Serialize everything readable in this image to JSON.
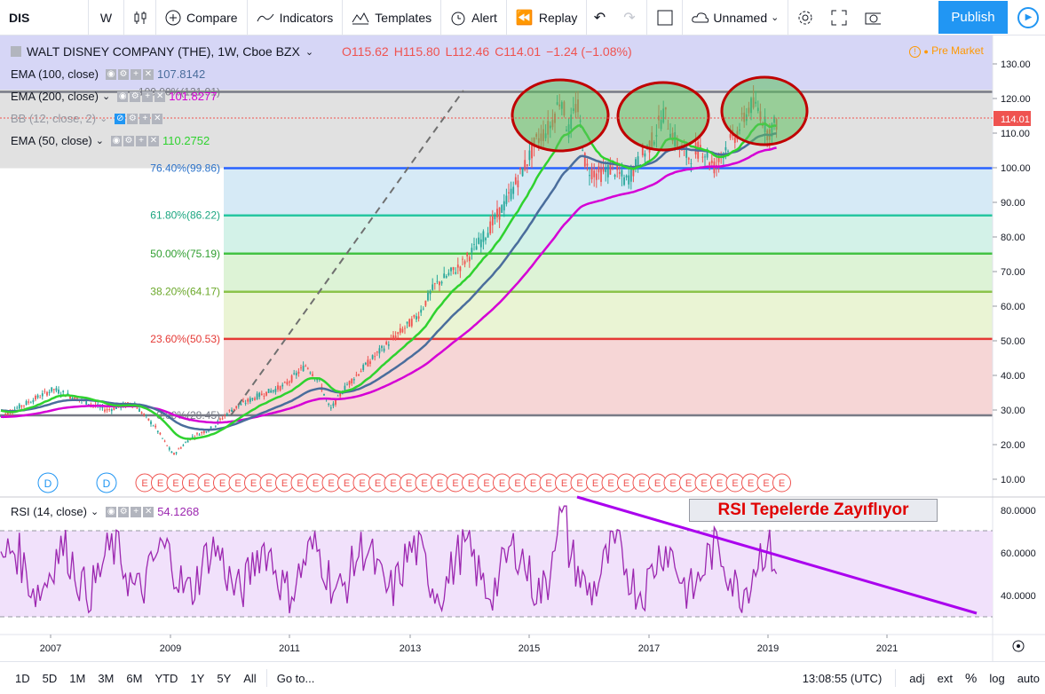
{
  "toolbar": {
    "symbol": "DIS",
    "interval": "W",
    "compare_label": "Compare",
    "indicators_label": "Indicators",
    "templates_label": "Templates",
    "alert_label": "Alert",
    "replay_label": "Replay",
    "layout_name": "Unnamed",
    "publish_label": "Publish"
  },
  "header": {
    "title": "WALT DISNEY COMPANY (THE), 1W, Cboe BZX",
    "open": "O115.62",
    "high": "H115.80",
    "low": "L112.46",
    "close": "C114.01",
    "change": "−1.24 (−1.08%)",
    "premarket": "Pre Market"
  },
  "indicators": [
    {
      "label": "EMA (100, close)",
      "value": "107.8142",
      "color": "#4a6d9c"
    },
    {
      "label": "EMA (200, close)",
      "value": "101.8277",
      "color": "#d500d5"
    },
    {
      "label": "BB (12, close, 2)",
      "value": "",
      "color": "#9598a1"
    },
    {
      "label": "EMA (50, close)",
      "value": "110.2752",
      "color": "#2fd22f"
    }
  ],
  "fib_levels": [
    {
      "label": "100.00%(121.91)",
      "value": 121.91,
      "line_color": "#787b86",
      "fill": "#e1e1e1",
      "text_color": "#787b86"
    },
    {
      "label": "76.40%(99.86)",
      "value": 99.86,
      "line_color": "#2962ff",
      "fill": "#e1e1e1",
      "text_color": "#2b72c9"
    },
    {
      "label": "61.80%(86.22)",
      "value": 86.22,
      "line_color": "#26c6a0",
      "fill": "#d6eaf6",
      "text_color": "#1ba680"
    },
    {
      "label": "50.00%(75.19)",
      "value": 75.19,
      "line_color": "#43c243",
      "fill": "#d3f2e8",
      "text_color": "#2f9e2f"
    },
    {
      "label": "38.20%(64.17)",
      "value": 64.17,
      "line_color": "#8bc34a",
      "fill": "#ddf3d6",
      "text_color": "#6ba82a"
    },
    {
      "label": "23.60%(50.53)",
      "value": 50.53,
      "line_color": "#e53935",
      "fill": "#eaf4d4",
      "text_color": "#e53935"
    },
    {
      "label": "0.00%(28.45)",
      "value": 28.45,
      "line_color": "#787b86",
      "fill": "#f6d6d6",
      "text_color": "#787b86"
    }
  ],
  "price_axis": {
    "ticks": [
      "130.00",
      "120.00",
      "110.00",
      "100.00",
      "90.00",
      "80.00",
      "70.00",
      "60.00",
      "50.00",
      "40.00",
      "30.00",
      "20.00",
      "10.00"
    ],
    "last_price": "114.01"
  },
  "rsi": {
    "label": "RSI (14, close)",
    "value": "54.1268",
    "ticks": [
      "80.0000",
      "60.0000",
      "40.0000"
    ],
    "annotation": "RSI Tepelerde Zayıflıyor"
  },
  "time_axis": [
    "2007",
    "2009",
    "2011",
    "2013",
    "2015",
    "2017",
    "2019",
    "2021"
  ],
  "markers": {
    "dividend": "D",
    "earnings": "E"
  },
  "bottom": {
    "ranges": [
      "1D",
      "5D",
      "1M",
      "3M",
      "6M",
      "YTD",
      "1Y",
      "5Y",
      "All"
    ],
    "goto_label": "Go to...",
    "clock": "13:08:55 (UTC)",
    "adj": "adj",
    "ext": "ext",
    "percent": "%",
    "log": "log",
    "auto": "auto"
  }
}
